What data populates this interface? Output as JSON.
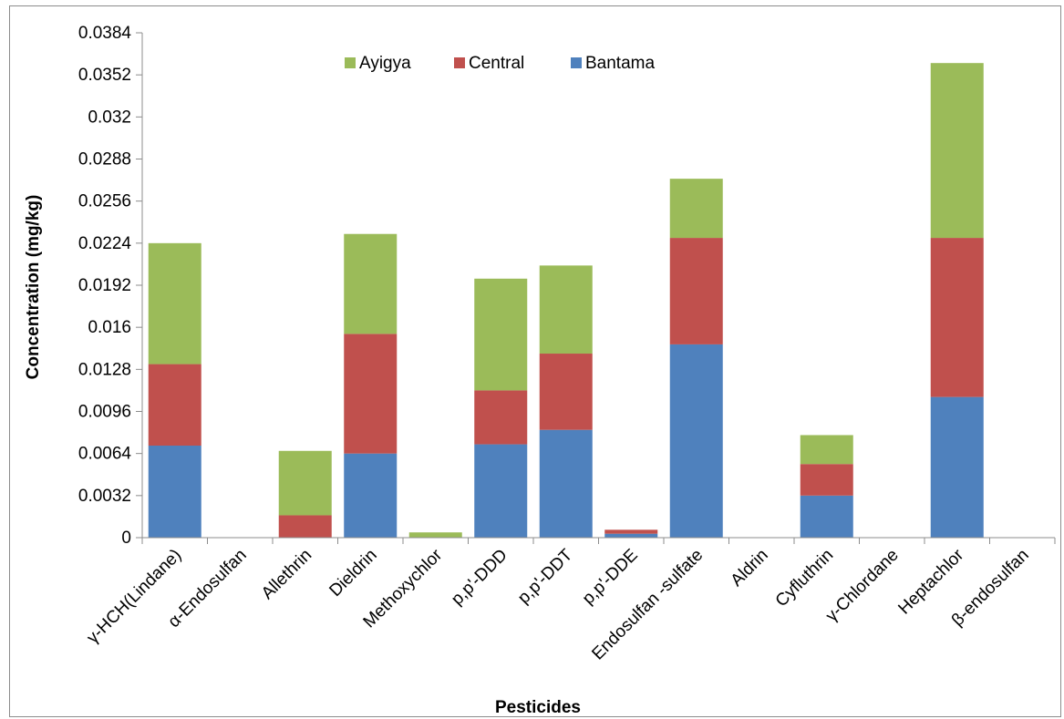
{
  "chart_data": {
    "type": "bar",
    "stacked": true,
    "title": "",
    "xlabel": "Pesticides",
    "ylabel": "Concentration (mg/kg)",
    "ylim": [
      0,
      0.0384
    ],
    "yticks": [
      "0",
      "0.0032",
      "0.0064",
      "0.0096",
      "0.0128",
      "0.016",
      "0.0192",
      "0.0224",
      "0.0256",
      "0.0288",
      "0.032",
      "0.0352",
      "0.0384"
    ],
    "categories": [
      "γ-HCH(Lindane)",
      "α-Endosulfan",
      "Allethrin",
      "Dieldrin",
      "Methoxychlor",
      "p,p'-DDD",
      "p,p'-DDT",
      "p,p'-DDE",
      "Endosulfan -sulfate",
      "Aldrin",
      "Cyfluthrin",
      "γ-Chlordane",
      "Heptachlor",
      "β-endosulfan"
    ],
    "series": [
      {
        "name": "Bantama",
        "color": "#4f81bd",
        "values": [
          0.007,
          0,
          0,
          0.0064,
          0,
          0.0071,
          0.0082,
          0.0003,
          0.0147,
          0,
          0.0032,
          0,
          0.0107,
          0
        ]
      },
      {
        "name": "Central",
        "color": "#c0504d",
        "values": [
          0.0062,
          0,
          0.0017,
          0.0091,
          0,
          0.0041,
          0.0058,
          0.0003,
          0.0081,
          0,
          0.0024,
          0,
          0.0121,
          0
        ]
      },
      {
        "name": "Ayigya",
        "color": "#9bbb59",
        "values": [
          0.0092,
          0,
          0.0049,
          0.0076,
          0.0004,
          0.0085,
          0.0067,
          0,
          0.0045,
          0,
          0.0022,
          0,
          0.0133,
          0
        ]
      }
    ],
    "legend": {
      "placement": "top",
      "order": [
        "Ayigya",
        "Central",
        "Bantama"
      ]
    },
    "grid": false
  }
}
